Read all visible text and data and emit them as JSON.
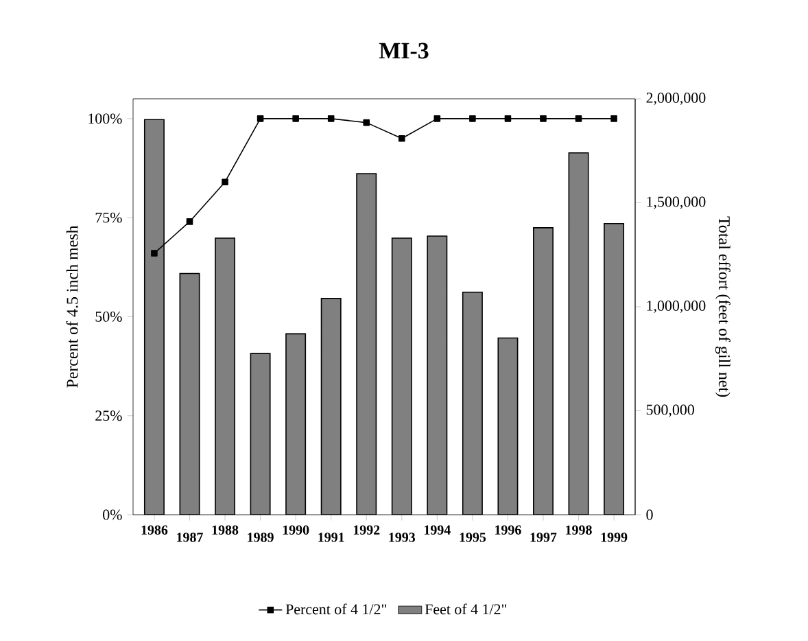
{
  "chart_data": {
    "type": "bar",
    "title": "MI-3",
    "categories": [
      "1986",
      "1987",
      "1988",
      "1989",
      "1990",
      "1991",
      "1992",
      "1993",
      "1994",
      "1995",
      "1996",
      "1997",
      "1998",
      "1999"
    ],
    "series": [
      {
        "name": "Percent of 4 1/2\"",
        "type": "line",
        "color": "#000000",
        "values": [
          66,
          74,
          84,
          100,
          100,
          100,
          99,
          95,
          100,
          100,
          100,
          100,
          100,
          100
        ]
      },
      {
        "name": "Feet of 4 1/2\"",
        "axis": "y2",
        "color": "#808080",
        "values": [
          1900000,
          1160000,
          1330000,
          775000,
          870000,
          1040000,
          1640000,
          1330000,
          1340000,
          1070000,
          850000,
          1380000,
          1740000,
          1400000
        ]
      }
    ],
    "ylabel": "Percent of 4.5 inch mesh",
    "y2label": "Total effort (feet of gill net)",
    "ylim": [
      0,
      105
    ],
    "yticks": [
      {
        "value": 0,
        "label": "0%"
      },
      {
        "value": 25,
        "label": "25%"
      },
      {
        "value": 50,
        "label": "50%"
      },
      {
        "value": 75,
        "label": "75%"
      },
      {
        "value": 100,
        "label": "100%"
      }
    ],
    "y2lim": [
      0,
      2000000
    ],
    "y2ticks": [
      0,
      {
        "value": 500000,
        "label": "500,000"
      },
      {
        "value": 1000000,
        "label": "1,000,000"
      },
      {
        "value": 1500000,
        "label": "1,500,000"
      },
      {
        "value": 2000000,
        "label": "2,000,000"
      }
    ],
    "legend": "bottom",
    "marker": "square",
    "line_style": "solid",
    "grid": false
  }
}
